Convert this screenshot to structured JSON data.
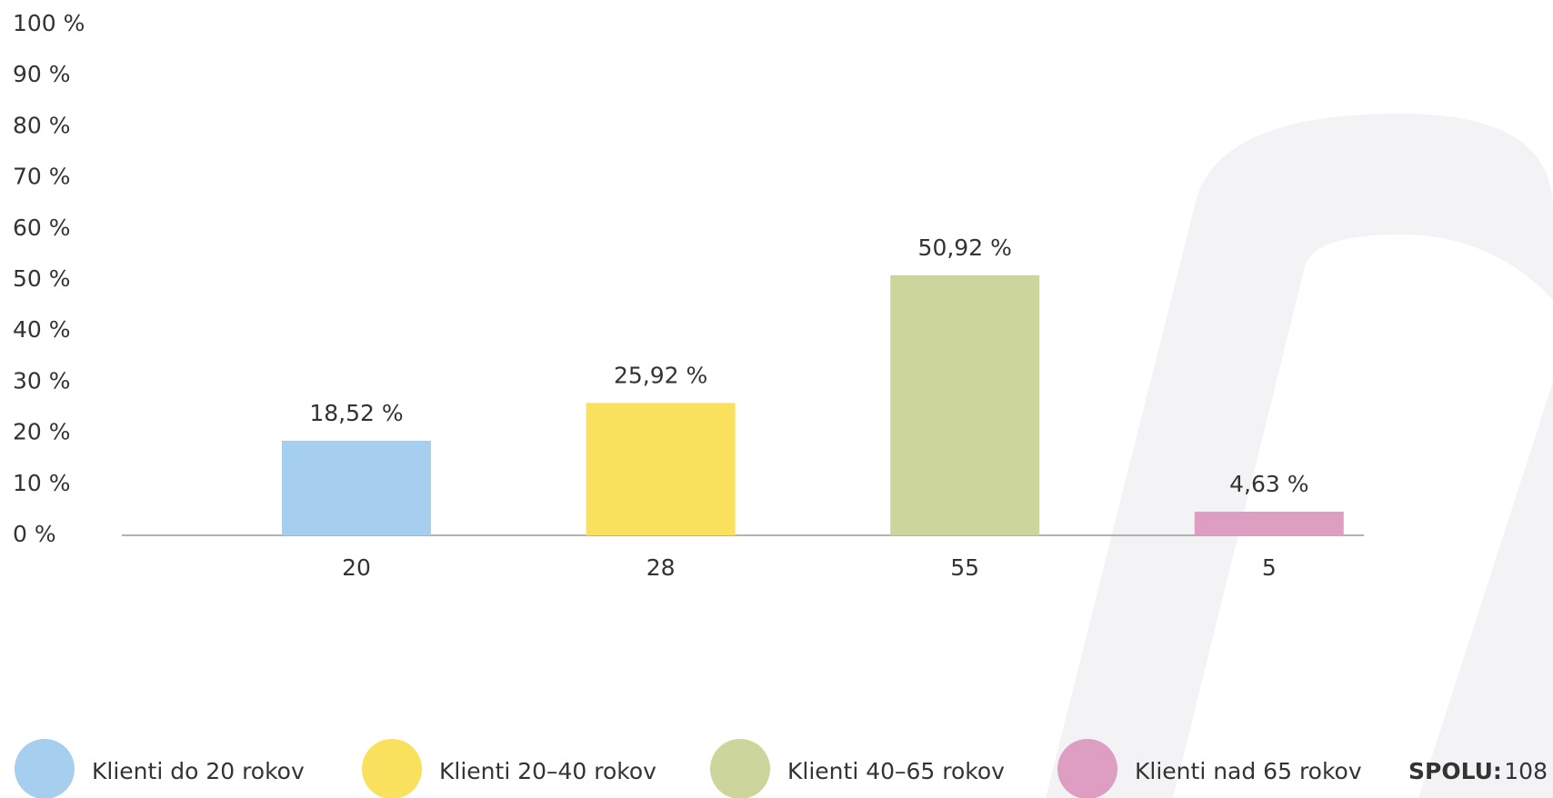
{
  "chart_data": {
    "type": "bar",
    "categories": [
      "20",
      "28",
      "55",
      "5"
    ],
    "values": [
      18.52,
      25.92,
      50.92,
      4.63
    ],
    "value_labels": [
      "18,52 %",
      "25,92 %",
      "50,92 %",
      "4,63 %"
    ],
    "colors": [
      "#a6ceee",
      "#fae15d",
      "#ccd59c",
      "#dd9ec2"
    ],
    "legend": [
      "Klienti do 20 rokov",
      "Klienti 20–40 rokov",
      "Klienti 40–65 rokov",
      "Klienti nad 65 rokov"
    ],
    "total": {
      "label": "SPOLU:",
      "value": 108
    },
    "ylim": [
      0,
      100
    ],
    "yticks": [
      {
        "value": 0,
        "label": "0 %"
      },
      {
        "value": 10,
        "label": "10 %"
      },
      {
        "value": 20,
        "label": "20 %"
      },
      {
        "value": 30,
        "label": "30 %"
      },
      {
        "value": 40,
        "label": "40 %"
      },
      {
        "value": 50,
        "label": "50 %"
      },
      {
        "value": 60,
        "label": "60 %"
      },
      {
        "value": 70,
        "label": "70 %"
      },
      {
        "value": 80,
        "label": "80 %"
      },
      {
        "value": 90,
        "label": "90 %"
      },
      {
        "value": 100,
        "label": "100 %"
      }
    ],
    "grid": true
  }
}
